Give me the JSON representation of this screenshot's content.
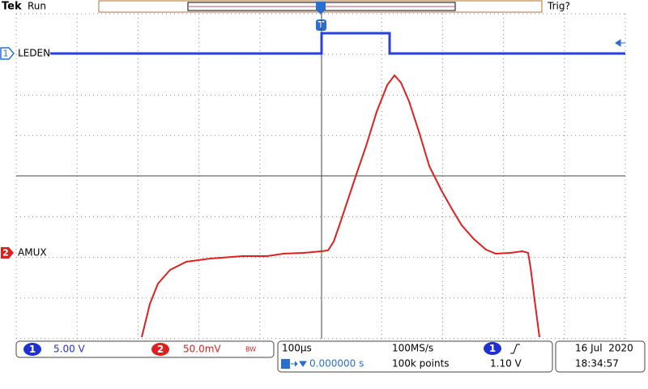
{
  "header": {
    "brand": "Tek",
    "status": "Run",
    "trigger_status": "Trig?",
    "trigger_marker": "T"
  },
  "channels": [
    {
      "number": "1",
      "label": "LEDEN",
      "scale": "5.00 V"
    },
    {
      "number": "2",
      "label": "AMUX",
      "scale": "50.0mV",
      "bandwidth_limit": "BW"
    }
  ],
  "timebase": {
    "scale": "100µs",
    "sample_rate": "100MS/s",
    "position": "0.000000 s",
    "record_length": "100k points"
  },
  "trigger": {
    "channel": "1",
    "level": "1.10 V"
  },
  "datetime": {
    "date": "16 Jul  2020",
    "time": "18:34:57"
  }
}
